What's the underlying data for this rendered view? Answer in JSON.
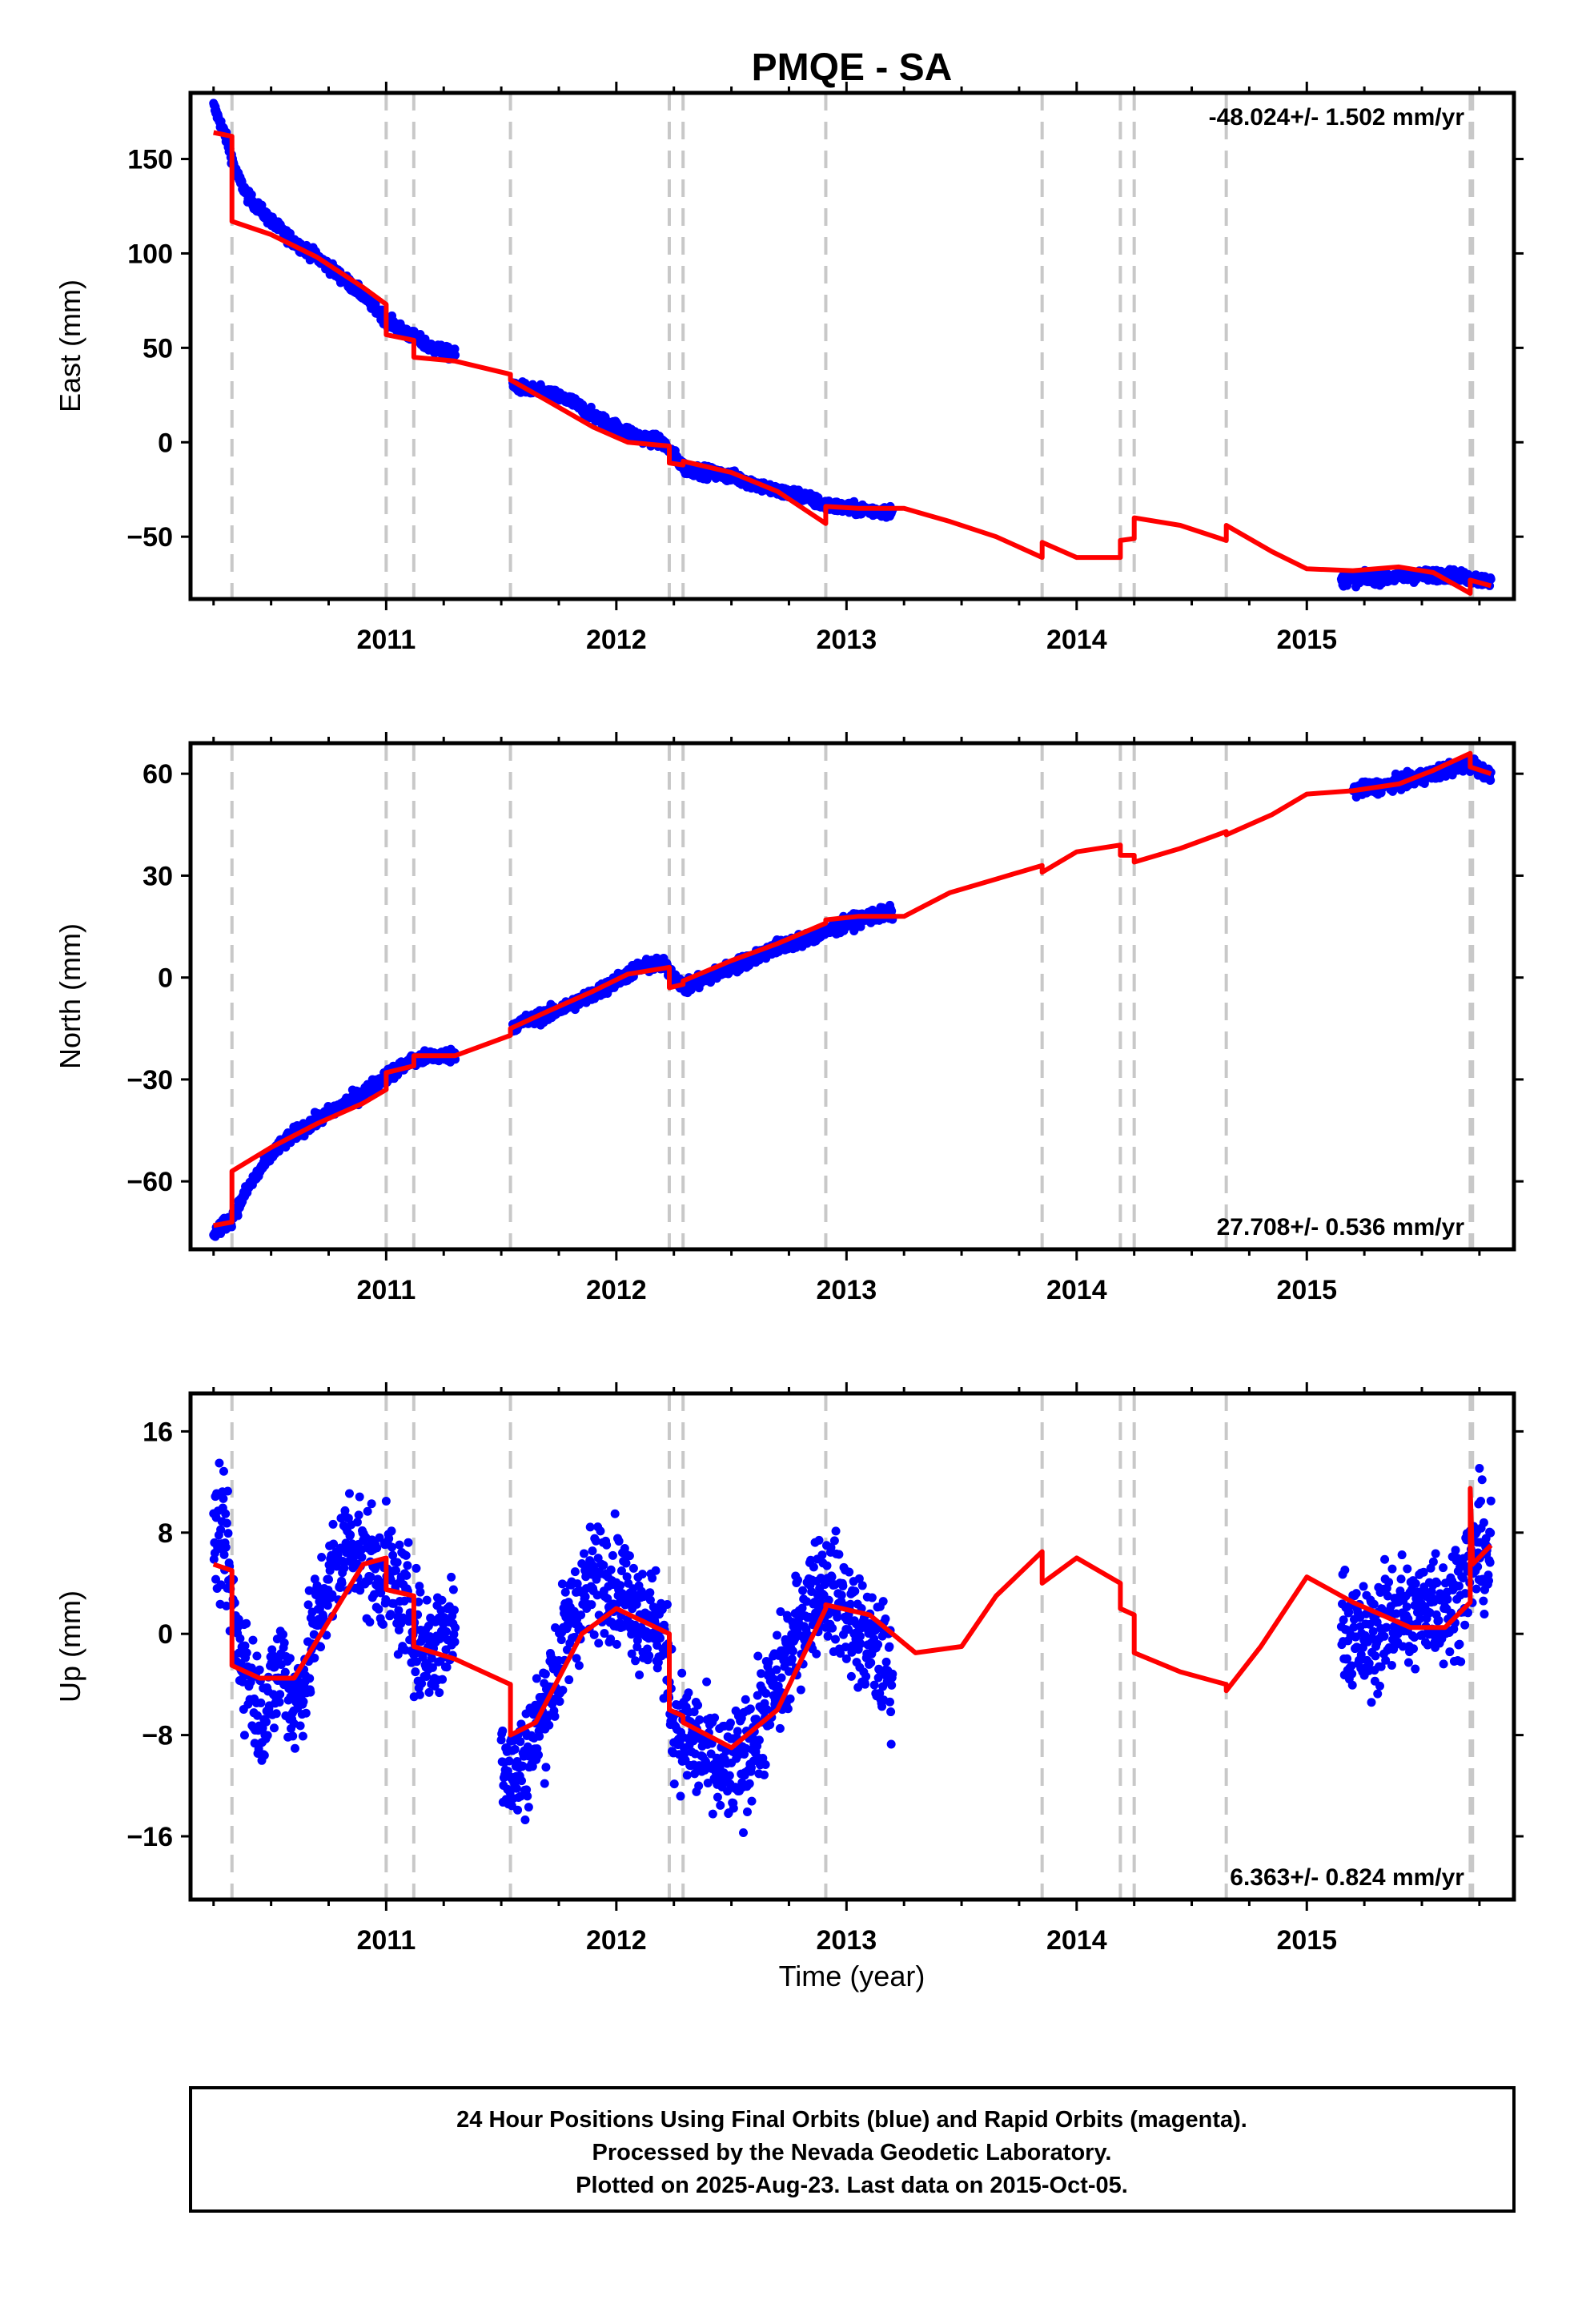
{
  "title": "PMQE - SA",
  "xlabel": "Time (year)",
  "footer": {
    "line1": "24 Hour Positions Using Final Orbits (blue) and Rapid Orbits (magenta).",
    "line2": "Processed by the Nevada Geodetic Laboratory.",
    "line3": "Plotted on 2025-Aug-23. Last data on 2015-Oct-05."
  },
  "colors": {
    "data": "#0000ff",
    "model": "#ff0000",
    "steps": "#c8c8c8",
    "frame": "#000000"
  },
  "chart_data": [
    {
      "type": "scatter",
      "name": "east",
      "ylabel": "East (mm)",
      "rate": "-48.024+/- 1.502 mm/yr",
      "xlim": [
        2010.15,
        2015.9
      ],
      "ylim": [
        -83,
        185
      ],
      "xticks": [
        2011,
        2012,
        2013,
        2014,
        2015
      ],
      "yticks": [
        -50,
        0,
        50,
        100,
        150
      ],
      "ytick_labels": [
        "−50",
        "0",
        "50",
        "100",
        "150"
      ],
      "steps": [
        2010.33,
        2011.0,
        2011.12,
        2011.54,
        2012.23,
        2012.29,
        2012.91,
        2013.85,
        2014.19,
        2014.25,
        2014.65,
        2015.71,
        2015.72
      ],
      "data_segments": [
        {
          "t": [
            2010.25,
            2010.3,
            2010.35,
            2010.4,
            2010.5,
            2010.6,
            2010.7,
            2010.8,
            2010.9,
            2011.0,
            2011.1,
            2011.2,
            2011.3
          ],
          "y": [
            178,
            163,
            142,
            130,
            117,
            106,
            98,
            88,
            78,
            65,
            57,
            50,
            46
          ]
        },
        {
          "t": [
            2011.55,
            2011.7,
            2011.8,
            2011.9,
            2012.0,
            2012.1,
            2012.2,
            2012.3,
            2012.4,
            2012.5,
            2012.6,
            2012.7,
            2012.8,
            2012.9,
            2013.0,
            2013.1,
            2013.2
          ],
          "y": [
            30,
            26,
            22,
            14,
            8,
            3,
            0,
            -14,
            -16,
            -18,
            -22,
            -26,
            -28,
            -33,
            -35,
            -36,
            -37
          ]
        },
        {
          "t": [
            2015.15,
            2015.3,
            2015.45,
            2015.6,
            2015.72,
            2015.8
          ],
          "y": [
            -73,
            -72,
            -71,
            -70,
            -72,
            -74
          ]
        }
      ],
      "model": {
        "t": [
          2010.25,
          2010.33,
          2010.33,
          2010.5,
          2010.7,
          2010.9,
          2011.0,
          2011.0,
          2011.12,
          2011.12,
          2011.3,
          2011.54,
          2011.54,
          2011.7,
          2011.9,
          2012.05,
          2012.23,
          2012.23,
          2012.29,
          2012.29,
          2012.5,
          2012.7,
          2012.91,
          2012.91,
          2013.05,
          2013.25,
          2013.45,
          2013.65,
          2013.85,
          2013.85,
          2014.0,
          2014.19,
          2014.19,
          2014.25,
          2014.25,
          2014.45,
          2014.65,
          2014.65,
          2014.85,
          2015.0,
          2015.2,
          2015.4,
          2015.55,
          2015.71,
          2015.71,
          2015.8
        ],
        "y": [
          164,
          162,
          117,
          110,
          98,
          82,
          73,
          57,
          54,
          45,
          43,
          36,
          33,
          22,
          8,
          0,
          -2,
          -11,
          -12,
          -10,
          -16,
          -26,
          -43,
          -34,
          -35,
          -35,
          -42,
          -50,
          -61,
          -53,
          -61,
          -61,
          -52,
          -51,
          -40,
          -44,
          -52,
          -44,
          -58,
          -67,
          -68,
          -66,
          -69,
          -80,
          -73,
          -76
        ]
      }
    },
    {
      "type": "scatter",
      "name": "north",
      "ylabel": "North (mm)",
      "rate": "27.708+/- 0.536 mm/yr",
      "xlim": [
        2010.15,
        2015.9
      ],
      "ylim": [
        -80,
        69
      ],
      "xticks": [
        2011,
        2012,
        2013,
        2014,
        2015
      ],
      "yticks": [
        -60,
        -30,
        0,
        30,
        60
      ],
      "ytick_labels": [
        "−60",
        "−30",
        "0",
        "30",
        "60"
      ],
      "steps": [
        2010.33,
        2011.0,
        2011.12,
        2011.54,
        2012.23,
        2012.29,
        2012.91,
        2013.85,
        2014.19,
        2014.25,
        2014.65,
        2015.71,
        2015.72
      ],
      "data_segments": [
        {
          "t": [
            2010.25,
            2010.33,
            2010.4,
            2010.5,
            2010.6,
            2010.7,
            2010.8,
            2010.9,
            2011.0,
            2011.1,
            2011.2,
            2011.3
          ],
          "y": [
            -75,
            -71,
            -62,
            -52,
            -46,
            -42,
            -38,
            -34,
            -29,
            -25,
            -23,
            -23
          ]
        },
        {
          "t": [
            2011.55,
            2011.7,
            2011.8,
            2011.9,
            2012.0,
            2012.1,
            2012.2,
            2012.3,
            2012.4,
            2012.5,
            2012.6,
            2012.7,
            2012.8,
            2012.9,
            2013.0,
            2013.1,
            2013.2
          ],
          "y": [
            -14,
            -11,
            -8,
            -5,
            -1,
            3,
            4,
            -3,
            0,
            3,
            6,
            9,
            11,
            13,
            16,
            18,
            19
          ]
        },
        {
          "t": [
            2015.2,
            2015.3,
            2015.45,
            2015.6,
            2015.72,
            2015.8
          ],
          "y": [
            55,
            56,
            58,
            61,
            63,
            59
          ]
        }
      ],
      "model": {
        "t": [
          2010.25,
          2010.33,
          2010.33,
          2010.5,
          2010.7,
          2010.9,
          2011.0,
          2011.0,
          2011.12,
          2011.12,
          2011.3,
          2011.54,
          2011.54,
          2011.7,
          2011.9,
          2012.05,
          2012.23,
          2012.23,
          2012.29,
          2012.29,
          2012.5,
          2012.7,
          2012.91,
          2012.91,
          2013.05,
          2013.25,
          2013.45,
          2013.65,
          2013.85,
          2013.85,
          2014.0,
          2014.19,
          2014.19,
          2014.25,
          2014.25,
          2014.45,
          2014.65,
          2014.65,
          2014.85,
          2015.0,
          2015.2,
          2015.4,
          2015.55,
          2015.71,
          2015.71,
          2015.8
        ],
        "y": [
          -73,
          -72,
          -57,
          -50,
          -43,
          -37,
          -33,
          -28,
          -26,
          -23,
          -23,
          -17,
          -15,
          -10,
          -4,
          1,
          3,
          -3,
          -2,
          -1,
          5,
          10,
          16,
          17,
          18,
          18,
          25,
          29,
          33,
          31,
          37,
          39,
          36,
          36,
          34,
          38,
          43,
          42,
          48,
          54,
          55,
          57,
          61,
          66,
          62,
          60
        ]
      }
    },
    {
      "type": "scatter",
      "name": "up",
      "ylabel": "Up (mm)",
      "rate": "6.363+/- 0.824 mm/yr",
      "xlim": [
        2010.15,
        2015.9
      ],
      "ylim": [
        -21,
        19
      ],
      "xticks": [
        2011,
        2012,
        2013,
        2014,
        2015
      ],
      "yticks": [
        -16,
        -8,
        0,
        8,
        16
      ],
      "ytick_labels": [
        "−16",
        "−8",
        "0",
        "8",
        "16"
      ],
      "steps": [
        2010.33,
        2011.0,
        2011.12,
        2011.54,
        2012.23,
        2012.29,
        2012.91,
        2013.85,
        2014.19,
        2014.25,
        2014.65,
        2015.71,
        2015.72
      ],
      "data_segments": [
        {
          "t": [
            2010.25,
            2010.3,
            2010.35,
            2010.4,
            2010.45,
            2010.5,
            2010.55,
            2010.6,
            2010.65,
            2010.7,
            2010.75,
            2010.8,
            2010.85,
            2010.9,
            2010.95,
            2011.0,
            2011.05,
            2011.1,
            2011.15,
            2011.2,
            2011.25,
            2011.3
          ],
          "y": [
            8,
            7,
            0,
            -3,
            -6,
            -5,
            -2,
            -6,
            -3,
            1,
            4,
            6,
            8,
            6,
            5,
            5,
            3,
            2,
            -1,
            -1,
            0,
            1
          ]
        },
        {
          "t": [
            2011.5,
            2011.55,
            2011.6,
            2011.65,
            2011.7,
            2011.75,
            2011.8,
            2011.85,
            2011.9,
            2011.95,
            2012.0,
            2012.05,
            2012.1,
            2012.15,
            2012.2,
            2012.25,
            2012.3,
            2012.35,
            2012.4,
            2012.45,
            2012.5,
            2012.55,
            2012.6,
            2012.65,
            2012.7,
            2012.75,
            2012.8,
            2012.85,
            2012.9,
            2012.95,
            2013.0,
            2013.05,
            2013.1,
            2013.15,
            2013.2
          ],
          "y": [
            -9,
            -11,
            -10,
            -8,
            -5,
            -2,
            1,
            3,
            4,
            5,
            4,
            3,
            2,
            1,
            0,
            -7,
            -8,
            -9,
            -10,
            -11,
            -11,
            -10,
            -8,
            -6,
            -4,
            -2,
            1,
            3,
            4,
            3,
            2,
            0,
            -1,
            -2,
            -3
          ]
        },
        {
          "t": [
            2015.15,
            2015.2,
            2015.25,
            2015.3,
            2015.35,
            2015.4,
            2015.45,
            2015.5,
            2015.55,
            2015.6,
            2015.65,
            2015.7,
            2015.75,
            2015.8
          ],
          "y": [
            1,
            0,
            -1,
            0,
            1,
            2,
            1,
            2,
            3,
            2,
            3,
            5,
            7,
            6
          ]
        }
      ],
      "model": {
        "t": [
          2010.25,
          2010.33,
          2010.33,
          2010.45,
          2010.6,
          2010.75,
          2010.9,
          2011.0,
          2011.0,
          2011.12,
          2011.12,
          2011.3,
          2011.54,
          2011.54,
          2011.65,
          2011.85,
          2012.0,
          2012.23,
          2012.23,
          2012.29,
          2012.29,
          2012.5,
          2012.7,
          2012.91,
          2012.91,
          2013.1,
          2013.3,
          2013.5,
          2013.65,
          2013.85,
          2013.85,
          2014.0,
          2014.19,
          2014.19,
          2014.25,
          2014.25,
          2014.45,
          2014.65,
          2014.65,
          2014.8,
          2015.0,
          2015.2,
          2015.45,
          2015.6,
          2015.71,
          2015.71,
          2015.72,
          2015.8
        ],
        "y": [
          5.5,
          5.0,
          -2.5,
          -3.5,
          -3.5,
          1,
          5.5,
          6,
          3.5,
          3,
          -1,
          -2,
          -4,
          -8,
          -7,
          0,
          2,
          0,
          -6,
          -6.5,
          -7,
          -9,
          -6,
          2,
          2.3,
          1.5,
          -1.5,
          -1,
          3,
          6.5,
          4,
          6,
          4,
          2,
          1.5,
          -1.5,
          -3,
          -4,
          -4.5,
          -1,
          4.5,
          2.5,
          0.5,
          0.5,
          2.5,
          11.5,
          5.5,
          7
        ]
      }
    }
  ]
}
